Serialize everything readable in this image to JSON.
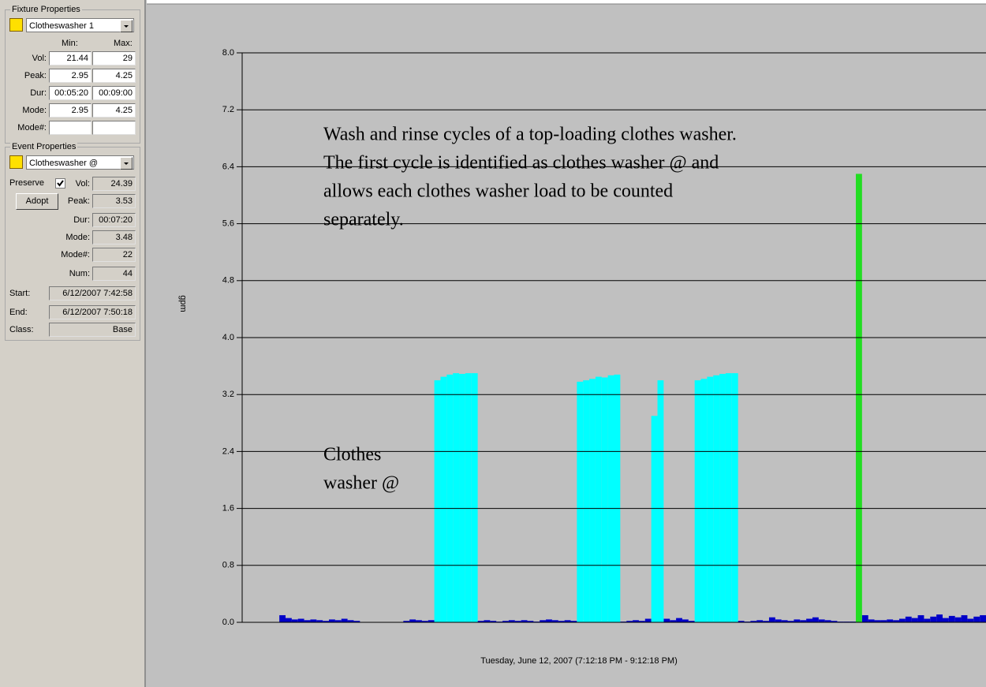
{
  "fixture_properties": {
    "title": "Fixture Properties",
    "fixture": "Clotheswasher 1",
    "min_header": "Min:",
    "max_header": "Max:",
    "rows": [
      {
        "label": "Vol:",
        "min": "21.44",
        "max": "29"
      },
      {
        "label": "Peak:",
        "min": "2.95",
        "max": "4.25"
      },
      {
        "label": "Dur:",
        "min": "00:05:20",
        "max": "00:09:00"
      },
      {
        "label": "Mode:",
        "min": "2.95",
        "max": "4.25"
      },
      {
        "label": "Mode#:"
      }
    ]
  },
  "event_properties": {
    "title": "Event Properties",
    "event": "Clotheswasher @",
    "preserve": "Preserve",
    "preserve_checked": true,
    "adopt": "Adopt",
    "rows": [
      {
        "label": "Vol:",
        "value": "24.39"
      },
      {
        "label": "Peak:",
        "value": "3.53"
      },
      {
        "label": "Dur:",
        "value": "00:07:20"
      },
      {
        "label": "Mode:",
        "value": "3.48"
      },
      {
        "label": "Mode#:",
        "value": "22"
      },
      {
        "label": "Num:",
        "value": "44"
      },
      {
        "label": "Start:",
        "value": "6/12/2007 7:42:58"
      },
      {
        "label": "End:",
        "value": "6/12/2007 7:50:18"
      },
      {
        "label": "Class:",
        "value": "Base"
      }
    ]
  },
  "chart_data": {
    "type": "bar",
    "ylabel": "gpm",
    "xlabel": "Tuesday, June 12, 2007 (7:12:18 PM - 9:12:18 PM)",
    "ylim": [
      0,
      8
    ],
    "yticks": [
      {
        "value": 0,
        "label": "0.0"
      },
      {
        "value": 0.8,
        "label": "0.8"
      },
      {
        "value": 1.6,
        "label": "1.6"
      },
      {
        "value": 2.4,
        "label": "2.4"
      },
      {
        "value": 3.2,
        "label": "3.2"
      },
      {
        "value": 4.0,
        "label": "4.0"
      },
      {
        "value": 4.8,
        "label": "4.8"
      },
      {
        "value": 5.6,
        "label": "5.6"
      },
      {
        "value": 6.4,
        "label": "6.4"
      },
      {
        "value": 7.2,
        "label": "7.2"
      },
      {
        "value": 8.0,
        "label": "8.0"
      }
    ],
    "grid": true,
    "annotations": [
      {
        "lines": [
          "Wash and rinse cycles of a top-loading clothes washer.",
          "The first cycle is identified as clothes washer @ and",
          "allows each clothes washer load to be counted",
          "separately."
        ]
      },
      {
        "lines": [
          "Clothes",
          "washer @"
        ]
      }
    ],
    "series": [
      {
        "color": "#0000c8",
        "values": [
          0,
          0,
          0,
          0,
          0,
          0,
          0.1,
          0.06,
          0.04,
          0.05,
          0.03,
          0.04,
          0.03,
          0.02,
          0.04,
          0.03,
          0.05,
          0.03,
          0.02,
          0,
          0,
          0,
          0,
          0,
          0,
          0,
          0.02,
          0.04,
          0.03,
          0.02,
          0.03,
          null,
          null,
          null,
          null,
          null,
          null,
          null,
          0.02,
          0.03,
          0.02,
          0.01,
          0.02,
          0.03,
          0.02,
          0.03,
          0.02,
          0.01,
          0.03,
          0.04,
          0.03,
          0.02,
          0.03,
          0.02,
          null,
          null,
          null,
          null,
          null,
          null,
          null,
          0.01,
          0.02,
          0.03,
          0.02,
          0.05,
          null,
          null,
          0.05,
          0.03,
          0.06,
          0.04,
          0.02,
          null,
          null,
          null,
          null,
          null,
          null,
          null,
          0.02,
          0.01,
          0.02,
          0.03,
          0.02,
          0.07,
          0.04,
          0.03,
          0.02,
          0.04,
          0.03,
          0.05,
          0.07,
          0.04,
          0.03,
          0.02,
          0.01,
          0.01,
          0.01,
          null,
          0.1,
          0.04,
          0.03,
          0.03,
          0.04,
          0.03,
          0.05,
          0.08,
          0.06,
          0.1,
          0.05,
          0.08,
          0.11,
          0.06,
          0.09,
          0.07,
          0.1,
          0.05,
          0.08,
          0.1
        ]
      },
      {
        "color": "#00ffff",
        "values": [
          null,
          null,
          null,
          null,
          null,
          null,
          null,
          null,
          null,
          null,
          null,
          null,
          null,
          null,
          null,
          null,
          null,
          null,
          null,
          null,
          null,
          null,
          null,
          null,
          null,
          null,
          null,
          null,
          null,
          null,
          null,
          3.4,
          3.45,
          3.48,
          3.5,
          3.49,
          3.5,
          3.5,
          null,
          null,
          null,
          null,
          null,
          null,
          null,
          null,
          null,
          null,
          null,
          null,
          null,
          null,
          null,
          null,
          3.38,
          3.4,
          3.42,
          3.45,
          3.44,
          3.47,
          3.48,
          null,
          null,
          null,
          null,
          null,
          2.9,
          3.4,
          null,
          null,
          null,
          null,
          null,
          3.4,
          3.42,
          3.45,
          3.47,
          3.49,
          3.5,
          3.5,
          null,
          null,
          null,
          null,
          null,
          null,
          null,
          null,
          null,
          null,
          null,
          null,
          null,
          null,
          null,
          null,
          null,
          null,
          null,
          null,
          null,
          null,
          null,
          null,
          null,
          null,
          null,
          null,
          null,
          null,
          null,
          null,
          null,
          null,
          null,
          null,
          null,
          null
        ]
      },
      {
        "color": "#22dd22",
        "values": [
          null,
          null,
          null,
          null,
          null,
          null,
          null,
          null,
          null,
          null,
          null,
          null,
          null,
          null,
          null,
          null,
          null,
          null,
          null,
          null,
          null,
          null,
          null,
          null,
          null,
          null,
          null,
          null,
          null,
          null,
          null,
          null,
          null,
          null,
          null,
          null,
          null,
          null,
          null,
          null,
          null,
          null,
          null,
          null,
          null,
          null,
          null,
          null,
          null,
          null,
          null,
          null,
          null,
          null,
          null,
          null,
          null,
          null,
          null,
          null,
          null,
          null,
          null,
          null,
          null,
          null,
          null,
          null,
          null,
          null,
          null,
          null,
          null,
          null,
          null,
          null,
          null,
          null,
          null,
          null,
          null,
          null,
          null,
          null,
          null,
          null,
          null,
          null,
          null,
          null,
          null,
          null,
          null,
          null,
          null,
          null,
          null,
          null,
          null,
          6.3,
          null,
          null,
          null,
          null,
          null,
          null,
          null,
          null,
          null,
          null,
          null,
          null,
          null,
          null,
          null,
          null,
          null,
          null,
          null,
          null
        ]
      }
    ]
  }
}
